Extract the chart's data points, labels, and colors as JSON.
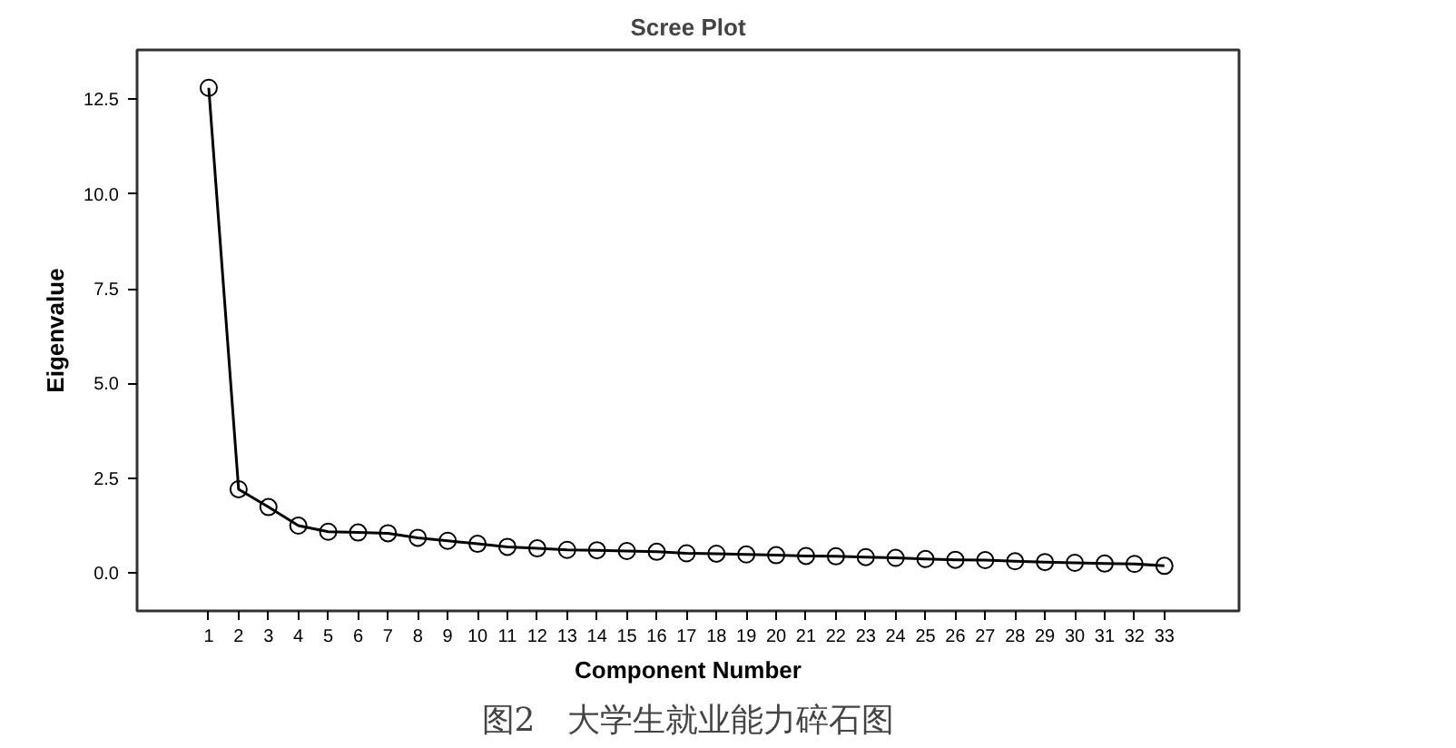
{
  "chart_data": {
    "type": "line",
    "title": "Scree Plot",
    "xlabel": "Component Number",
    "ylabel": "Eigenvalue",
    "x": [
      1,
      2,
      3,
      4,
      5,
      6,
      7,
      8,
      9,
      10,
      11,
      12,
      13,
      14,
      15,
      16,
      17,
      18,
      19,
      20,
      21,
      22,
      23,
      24,
      25,
      26,
      27,
      28,
      29,
      30,
      31,
      32,
      33
    ],
    "series": [
      {
        "color": "#000000",
        "values": [
          12.8,
          2.21,
          1.74,
          1.25,
          1.09,
          1.07,
          1.05,
          0.93,
          0.85,
          0.77,
          0.69,
          0.65,
          0.61,
          0.6,
          0.58,
          0.56,
          0.52,
          0.51,
          0.49,
          0.47,
          0.45,
          0.44,
          0.42,
          0.4,
          0.37,
          0.35,
          0.34,
          0.31,
          0.29,
          0.27,
          0.25,
          0.24,
          0.19
        ]
      }
    ],
    "xlim": [
      -1.4,
      35.5
    ],
    "xticks": [
      1,
      2,
      3,
      4,
      5,
      6,
      7,
      8,
      9,
      10,
      11,
      12,
      13,
      14,
      15,
      16,
      17,
      18,
      19,
      20,
      21,
      22,
      23,
      24,
      25,
      26,
      27,
      28,
      29,
      30,
      31,
      32,
      33
    ],
    "ylim": [
      -1.0,
      13.8
    ],
    "yticks": [
      {
        "value": 0,
        "label": "0.0"
      },
      {
        "value": 2.5,
        "label": "2.5"
      },
      {
        "value": 5,
        "label": "5.0"
      },
      {
        "value": 7.5,
        "label": "7.5"
      },
      {
        "value": 10,
        "label": "10.0"
      },
      {
        "value": 12.5,
        "label": "12.5"
      }
    ],
    "marker": "circle",
    "line_style": "solid",
    "grid": false,
    "annotations": [
      "图2　大学生就业能力碎石图"
    ]
  }
}
